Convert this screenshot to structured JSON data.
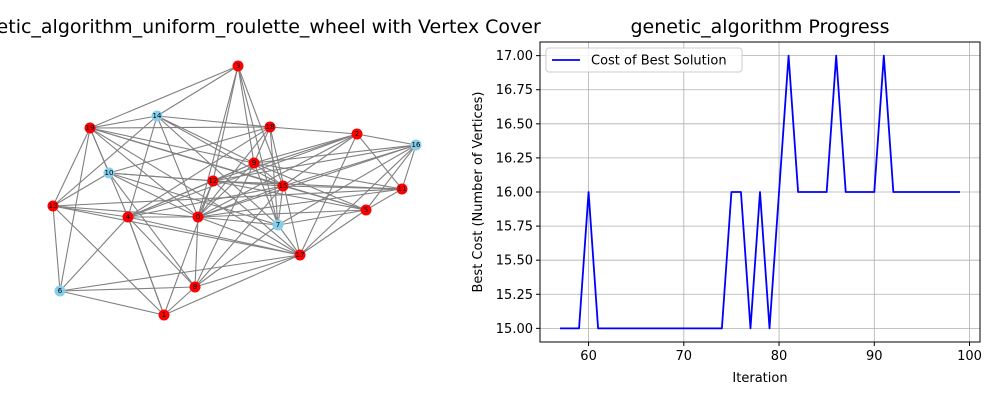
{
  "left_panel": {
    "title": "h_genetic_algorithm_uniform_roulette_wheel with Vertex Cover",
    "colors": {
      "in_cover": "#ff0000",
      "not_in_cover": "#87ceeb",
      "edge": "#808080"
    }
  },
  "chart_data": {
    "type": "line",
    "title": "genetic_algorithm Progress",
    "xlabel": "Iteration",
    "ylabel": "Best Cost (Number of Vertices)",
    "xlim": [
      54.9,
      101.1
    ],
    "ylim": [
      14.9,
      17.1
    ],
    "xticks": [
      60,
      70,
      80,
      90,
      100
    ],
    "yticks": [
      15.0,
      15.25,
      15.5,
      15.75,
      16.0,
      16.25,
      16.5,
      16.75,
      17.0
    ],
    "ytick_labels": [
      "15.00",
      "15.25",
      "15.50",
      "15.75",
      "16.00",
      "16.25",
      "16.50",
      "16.75",
      "17.00"
    ],
    "grid": true,
    "legend_position": "top-left",
    "series": [
      {
        "name": "Cost of Best Solution",
        "color": "#0000ff",
        "x": [
          57,
          58,
          59,
          60,
          61,
          62,
          63,
          64,
          65,
          66,
          67,
          68,
          69,
          70,
          71,
          72,
          73,
          74,
          75,
          76,
          77,
          78,
          79,
          80,
          81,
          82,
          83,
          84,
          85,
          86,
          87,
          88,
          89,
          90,
          91,
          92,
          93,
          94,
          95,
          96,
          97,
          98,
          99
        ],
        "y": [
          15,
          15,
          15,
          16,
          15,
          15,
          15,
          15,
          15,
          15,
          15,
          15,
          15,
          15,
          15,
          15,
          15,
          15,
          16,
          16,
          15,
          16,
          15,
          16,
          17,
          16,
          16,
          16,
          16,
          17,
          16,
          16,
          16,
          16,
          17,
          16,
          16,
          16,
          16,
          16,
          16,
          16,
          16
        ]
      }
    ]
  }
}
